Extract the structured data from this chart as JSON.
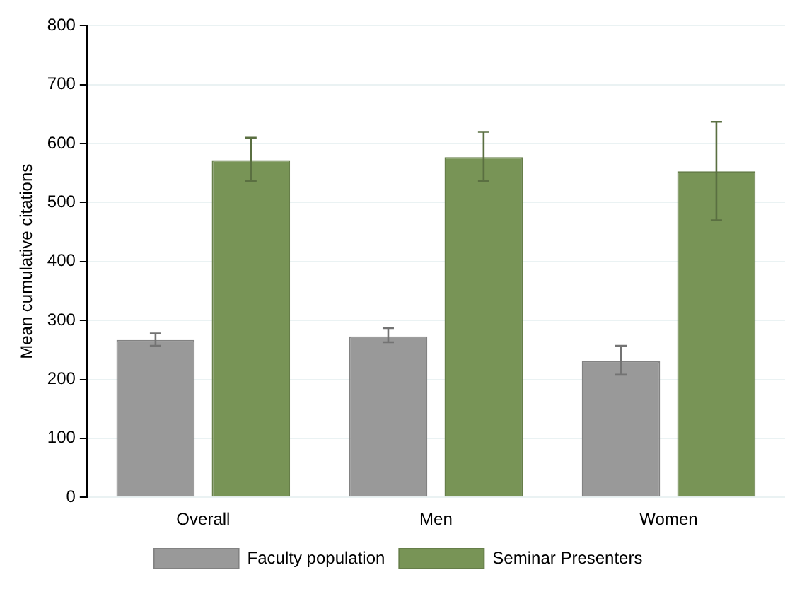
{
  "chart_data": {
    "type": "bar",
    "ylabel": "Mean cumulative citations",
    "categories": [
      "Overall",
      "Men",
      "Women"
    ],
    "series": [
      {
        "name": "Faculty population",
        "color": "#999999",
        "values": [
          267,
          273,
          231
        ],
        "errors": [
          [
            257,
            278
          ],
          [
            263,
            287
          ],
          [
            208,
            257
          ]
        ]
      },
      {
        "name": "Seminar Presenters",
        "color": "#789456",
        "values": [
          572,
          577,
          553
        ],
        "errors": [
          [
            537,
            610
          ],
          [
            537,
            620
          ],
          [
            470,
            637
          ]
        ]
      }
    ],
    "ylim": [
      0,
      800
    ],
    "yticks": [
      0,
      100,
      200,
      300,
      400,
      500,
      600,
      700,
      800
    ],
    "grid": "y",
    "legend": "bottom"
  }
}
